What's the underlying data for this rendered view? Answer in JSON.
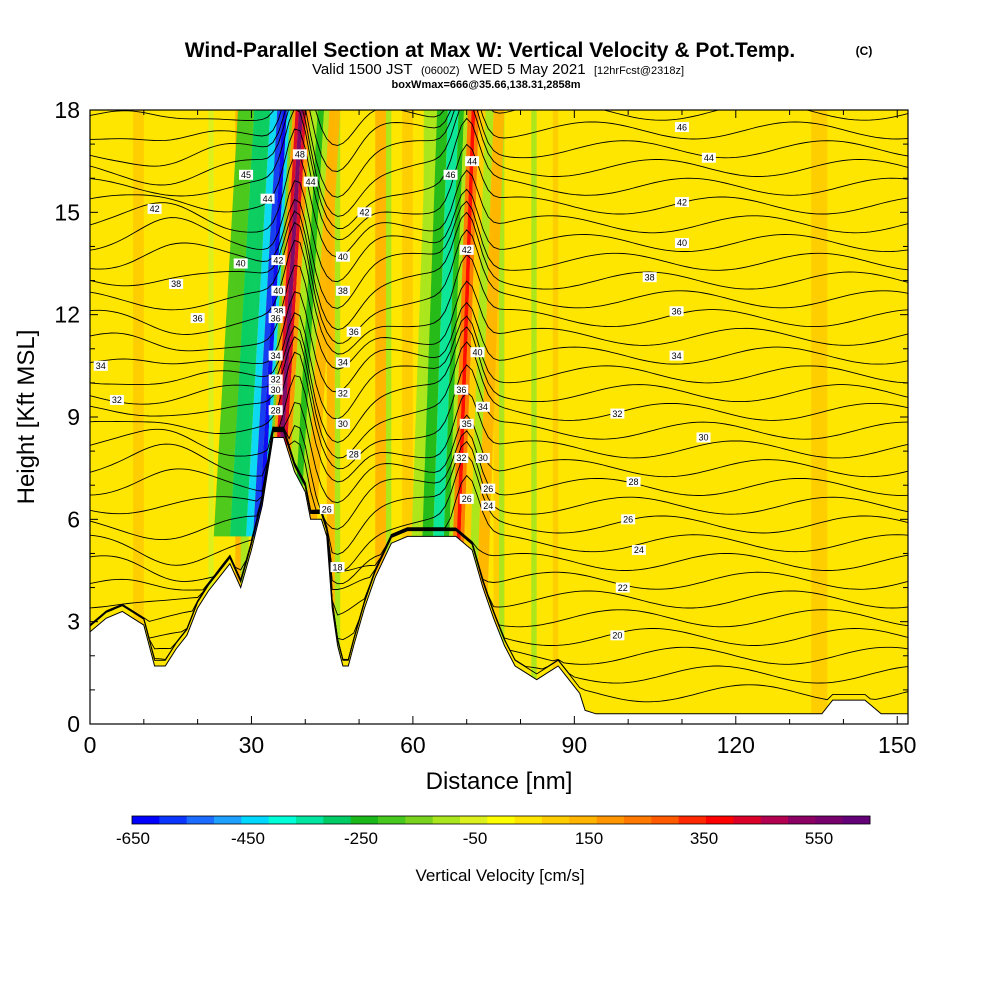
{
  "title": {
    "main": "Wind-Parallel Section at Max W: Vertical Velocity & Pot.Temp.",
    "copyright": "(C)",
    "valid_prefix": "Valid 1500 JST",
    "valid_utc": "(0600Z)",
    "valid_date": "WED 5 May 2021",
    "forecast": "[12hrFcst@2318z]",
    "box_info": "boxWmax=666@35.66,138.31,2858m"
  },
  "colors": {
    "background": "#ffffff",
    "terrain": "#ffffff",
    "field_base": "#ffe600",
    "contour": "#000000"
  },
  "chart_data": {
    "type": "heatmap",
    "xlabel": "Distance [nm]",
    "ylabel": "Height [Kft MSL]",
    "xlim": [
      0,
      152
    ],
    "ylim": [
      0,
      18
    ],
    "x_ticks": [
      0,
      30,
      60,
      90,
      120,
      150
    ],
    "y_ticks": [
      0,
      3,
      6,
      9,
      12,
      15,
      18
    ],
    "colorbar": {
      "title": "Vertical Velocity [cm/s]",
      "ticks": [
        "-650",
        "-450",
        "-250",
        "-50",
        "150",
        "350",
        "550"
      ],
      "colors": [
        "#0000ff",
        "#0a36ff",
        "#1c6cff",
        "#1ea0ff",
        "#00d8ff",
        "#00ffd8",
        "#00e6a0",
        "#00cc66",
        "#1bb81b",
        "#46c81e",
        "#78d21e",
        "#aae61e",
        "#dcf01e",
        "#ffff00",
        "#ffe600",
        "#ffcc00",
        "#ffb400",
        "#ff9600",
        "#ff7800",
        "#ff5a00",
        "#ff2800",
        "#ff0000",
        "#dc0028",
        "#b40050",
        "#8c0064",
        "#78006e",
        "#640078"
      ]
    },
    "terrain_profile": [
      [
        0,
        2.7
      ],
      [
        3,
        3.1
      ],
      [
        6,
        3.3
      ],
      [
        8,
        3.1
      ],
      [
        10,
        2.9
      ],
      [
        12,
        1.7
      ],
      [
        14,
        1.7
      ],
      [
        16,
        2.2
      ],
      [
        18,
        2.6
      ],
      [
        20,
        3.4
      ],
      [
        22,
        3.9
      ],
      [
        24,
        4.3
      ],
      [
        26,
        4.7
      ],
      [
        28,
        4.0
      ],
      [
        30,
        5.1
      ],
      [
        32,
        6.4
      ],
      [
        34,
        8.4
      ],
      [
        36,
        8.4
      ],
      [
        38,
        7.4
      ],
      [
        40,
        6.8
      ],
      [
        41,
        6.0
      ],
      [
        43,
        6.0
      ],
      [
        44,
        5.5
      ],
      [
        45,
        3.4
      ],
      [
        46,
        2.3
      ],
      [
        47,
        1.7
      ],
      [
        48,
        1.7
      ],
      [
        49,
        2.3
      ],
      [
        51,
        3.4
      ],
      [
        53,
        4.3
      ],
      [
        56,
        5.3
      ],
      [
        59,
        5.5
      ],
      [
        62,
        5.5
      ],
      [
        64,
        5.5
      ],
      [
        66,
        5.5
      ],
      [
        68,
        5.5
      ],
      [
        71,
        5.1
      ],
      [
        73,
        4.0
      ],
      [
        75,
        3.1
      ],
      [
        77,
        2.3
      ],
      [
        79,
        1.7
      ],
      [
        81,
        1.5
      ],
      [
        83,
        1.3
      ],
      [
        85,
        1.5
      ],
      [
        87,
        1.7
      ],
      [
        89,
        1.3
      ],
      [
        91,
        0.9
      ],
      [
        92,
        0.4
      ],
      [
        94,
        0.3
      ],
      [
        100,
        0.3
      ],
      [
        110,
        0.3
      ],
      [
        120,
        0.3
      ],
      [
        130,
        0.3
      ],
      [
        136,
        0.3
      ],
      [
        138,
        0.7
      ],
      [
        144,
        0.7
      ],
      [
        147,
        0.3
      ],
      [
        150,
        0.3
      ],
      [
        152,
        0.3
      ]
    ],
    "velocity_features": [
      {
        "x0": 36.5,
        "x1": 41.5,
        "min_cm_s": -650,
        "max_cm_s": 600
      },
      {
        "x0": 64.0,
        "x1": 73.0,
        "min_cm_s": -350,
        "max_cm_s": 400
      }
    ],
    "theta_contour_labels": [
      {
        "x": 2,
        "y": 10.5,
        "text": "34"
      },
      {
        "x": 5,
        "y": 9.5,
        "text": "32"
      },
      {
        "x": 12,
        "y": 15.1,
        "text": "42"
      },
      {
        "x": 16,
        "y": 12.9,
        "text": "38"
      },
      {
        "x": 20,
        "y": 11.9,
        "text": "36"
      },
      {
        "x": 28,
        "y": 13.5,
        "text": "40"
      },
      {
        "x": 29,
        "y": 16.1,
        "text": "45"
      },
      {
        "x": 33,
        "y": 15.4,
        "text": "44"
      },
      {
        "x": 35,
        "y": 13.6,
        "text": "42"
      },
      {
        "x": 35,
        "y": 12.7,
        "text": "40"
      },
      {
        "x": 35,
        "y": 12.1,
        "text": "38"
      },
      {
        "x": 34.5,
        "y": 11.9,
        "text": "36"
      },
      {
        "x": 34.5,
        "y": 10.8,
        "text": "34"
      },
      {
        "x": 34.5,
        "y": 10.1,
        "text": "32"
      },
      {
        "x": 34.5,
        "y": 9.8,
        "text": "30"
      },
      {
        "x": 34.5,
        "y": 9.2,
        "text": "28"
      },
      {
        "x": 39,
        "y": 16.7,
        "text": "48"
      },
      {
        "x": 41,
        "y": 15.9,
        "text": "44"
      },
      {
        "x": 51,
        "y": 15.0,
        "text": "42"
      },
      {
        "x": 47,
        "y": 13.7,
        "text": "40"
      },
      {
        "x": 47,
        "y": 12.7,
        "text": "38"
      },
      {
        "x": 49,
        "y": 11.5,
        "text": "36"
      },
      {
        "x": 47,
        "y": 10.6,
        "text": "34"
      },
      {
        "x": 47,
        "y": 9.7,
        "text": "32"
      },
      {
        "x": 47,
        "y": 8.8,
        "text": "30"
      },
      {
        "x": 49,
        "y": 7.9,
        "text": "28"
      },
      {
        "x": 44,
        "y": 6.3,
        "text": "26"
      },
      {
        "x": 46,
        "y": 4.6,
        "text": "18"
      },
      {
        "x": 67,
        "y": 16.1,
        "text": "46"
      },
      {
        "x": 71,
        "y": 16.5,
        "text": "44"
      },
      {
        "x": 70,
        "y": 13.9,
        "text": "42"
      },
      {
        "x": 72,
        "y": 10.9,
        "text": "40"
      },
      {
        "x": 69,
        "y": 9.8,
        "text": "36"
      },
      {
        "x": 70,
        "y": 8.8,
        "text": "35"
      },
      {
        "x": 73,
        "y": 9.3,
        "text": "34"
      },
      {
        "x": 69,
        "y": 7.8,
        "text": "32"
      },
      {
        "x": 73,
        "y": 7.8,
        "text": "30"
      },
      {
        "x": 74,
        "y": 6.9,
        "text": "26"
      },
      {
        "x": 70,
        "y": 6.6,
        "text": "26"
      },
      {
        "x": 74,
        "y": 6.4,
        "text": "24"
      },
      {
        "x": 110,
        "y": 17.5,
        "text": "46"
      },
      {
        "x": 115,
        "y": 16.6,
        "text": "44"
      },
      {
        "x": 110,
        "y": 15.3,
        "text": "42"
      },
      {
        "x": 110,
        "y": 14.1,
        "text": "40"
      },
      {
        "x": 104,
        "y": 13.1,
        "text": "38"
      },
      {
        "x": 109,
        "y": 12.1,
        "text": "36"
      },
      {
        "x": 109,
        "y": 10.8,
        "text": "34"
      },
      {
        "x": 98,
        "y": 9.1,
        "text": "32"
      },
      {
        "x": 114,
        "y": 8.4,
        "text": "30"
      },
      {
        "x": 101,
        "y": 7.1,
        "text": "28"
      },
      {
        "x": 100,
        "y": 6.0,
        "text": "26"
      },
      {
        "x": 102,
        "y": 5.1,
        "text": "24"
      },
      {
        "x": 99,
        "y": 4.0,
        "text": "22"
      },
      {
        "x": 98,
        "y": 2.6,
        "text": "20"
      }
    ]
  }
}
